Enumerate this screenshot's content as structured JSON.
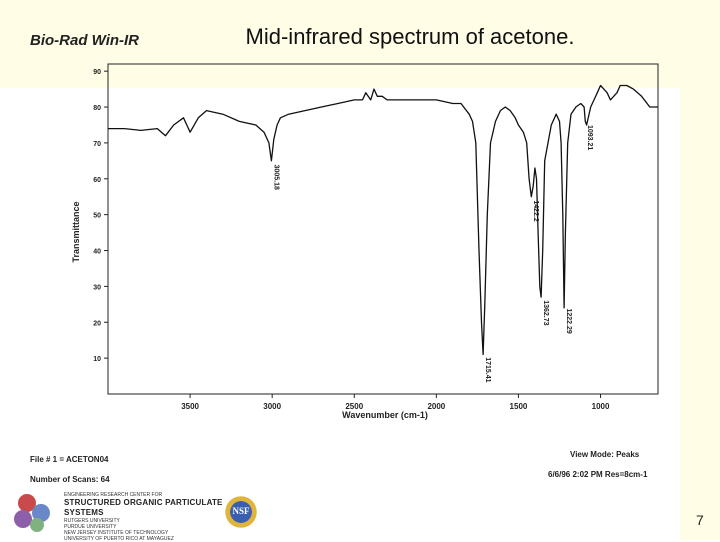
{
  "slide": {
    "title": "Mid-infrared spectrum of acetone.",
    "brand": "Bio-Rad Win-IR",
    "page_number": "7"
  },
  "info": {
    "file": "File # 1 = ACETON04",
    "scans": "Number of Scans: 64",
    "view_mode": "View Mode: Peaks",
    "date_res": "6/6/96  2:02 PM  Res=8cm-1"
  },
  "credits": {
    "small_line": "ENGINEERING RESEARCH CENTER FOR",
    "main_line": "STRUCTURED ORGANIC PARTICULATE SYSTEMS",
    "institutions": [
      "RUTGERS UNIVERSITY",
      "PURDUE UNIVERSITY",
      "NEW JERSEY INSTITUTE OF TECHNOLOGY",
      "UNIVERSITY OF PUERTO RICO AT MAYAGUEZ"
    ],
    "nsf_label": "NSF"
  },
  "colors": {
    "line": "#111111",
    "band": "#fffde6",
    "axis": "#222222"
  },
  "chart_data": {
    "type": "line",
    "title": "Mid-infrared spectrum of acetone.",
    "xlabel": "Wavenumber (cm-1)",
    "ylabel": "Transmittance",
    "xlim": [
      4000,
      650
    ],
    "ylim": [
      0,
      92
    ],
    "x_ticks": [
      3500,
      3000,
      2500,
      2000,
      1500,
      1000
    ],
    "y_ticks": [
      10,
      20,
      30,
      40,
      50,
      60,
      70,
      80,
      90
    ],
    "grid": false,
    "series": [
      {
        "name": "acetone",
        "x": [
          4000,
          3900,
          3800,
          3700,
          3650,
          3600,
          3540,
          3520,
          3500,
          3450,
          3400,
          3300,
          3200,
          3100,
          3050,
          3020,
          3005,
          2990,
          2970,
          2950,
          2900,
          2800,
          2700,
          2600,
          2500,
          2450,
          2430,
          2400,
          2380,
          2360,
          2330,
          2300,
          2200,
          2100,
          2000,
          1900,
          1850,
          1800,
          1780,
          1760,
          1740,
          1725,
          1715,
          1705,
          1690,
          1670,
          1640,
          1610,
          1580,
          1550,
          1520,
          1500,
          1470,
          1450,
          1435,
          1422,
          1410,
          1400,
          1390,
          1380,
          1370,
          1362,
          1352,
          1340,
          1300,
          1270,
          1250,
          1240,
          1230,
          1222,
          1214,
          1200,
          1180,
          1150,
          1120,
          1100,
          1093,
          1085,
          1060,
          1040,
          1020,
          1000,
          980,
          960,
          940,
          920,
          900,
          880,
          860,
          840,
          800,
          750,
          700,
          650
        ],
        "y": [
          74,
          74,
          73.5,
          74,
          72,
          75,
          77,
          75,
          73,
          77,
          79,
          78,
          76,
          75,
          73,
          70,
          65,
          71,
          75,
          77,
          78,
          79,
          80,
          81,
          82,
          82,
          84,
          82,
          85,
          83,
          83,
          82,
          82,
          82,
          82,
          81,
          81,
          78,
          76,
          70,
          40,
          20,
          11,
          25,
          50,
          70,
          76,
          79,
          80,
          79,
          77,
          75,
          73,
          70,
          60,
          55,
          58,
          63,
          60,
          45,
          30,
          27,
          40,
          65,
          75,
          78,
          76,
          70,
          50,
          24,
          45,
          70,
          78,
          80,
          81,
          80,
          76,
          75,
          80,
          82,
          84,
          86,
          85,
          84,
          82,
          83,
          84,
          86,
          86,
          86,
          85,
          83,
          80,
          80
        ]
      }
    ],
    "peaks": [
      {
        "x": 3005.18,
        "label": "3005.18"
      },
      {
        "x": 1715.41,
        "label": "1715.41"
      },
      {
        "x": 1422.2,
        "label": "1422.2"
      },
      {
        "x": 1362.73,
        "label": "1362.73"
      },
      {
        "x": 1222.29,
        "label": "1222.29"
      },
      {
        "x": 1093.21,
        "label": "1093.21"
      }
    ]
  }
}
